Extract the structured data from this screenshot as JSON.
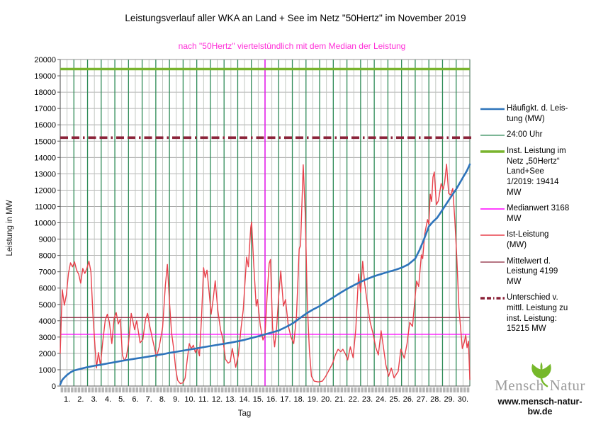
{
  "header": {
    "title": "Leistungsverlauf aller WKA an Land + See im Netz \"50Hertz\" im November 2019",
    "subtitle": "nach \"50Hertz\" viertelstündlich mit dem Median der Leistung",
    "subtitle_color": "#ff30d8"
  },
  "axes": {
    "y": {
      "label": "Leistung in MW",
      "min": 0,
      "max": 20000,
      "step": 1000
    },
    "x": {
      "label": "Tag",
      "day_labels": [
        "1.",
        "2.",
        "3.",
        "4.",
        "5.",
        "6.",
        "7.",
        "8.",
        "9.",
        "10.",
        "11.",
        "12.",
        "13.",
        "14.",
        "15.",
        "16.",
        "17.",
        "18.",
        "19.",
        "20.",
        "21.",
        "22.",
        "23.",
        "24.",
        "25.",
        "26.",
        "27.",
        "28.",
        "29.",
        "30."
      ]
    }
  },
  "legend": {
    "items": [
      {
        "key": "haeufigkeit",
        "label": "Häufigkt. d. Leis-\ntung (MW)",
        "color": "#2e74bb",
        "thickness": 2.6,
        "dash": "solid"
      },
      {
        "key": "mitternacht",
        "label": "24:00 Uhr",
        "color": "#2e8b57",
        "thickness": 1.2,
        "dash": "solid"
      },
      {
        "key": "inst-leistung",
        "label": "Inst. Leistung im\nNetz „50Hertz“\nLand+See\n1/2019: 19414\nMW",
        "color": "#79b42d",
        "thickness": 3.6,
        "dash": "solid"
      },
      {
        "key": "medianwert",
        "label": "Medianwert 3168\nMW",
        "color": "#ff00ff",
        "thickness": 1.4,
        "dash": "solid"
      },
      {
        "key": "ist-leistung",
        "label": "Ist-Leistung\n(MW)",
        "color": "#e8414b",
        "thickness": 1.4,
        "dash": "solid"
      },
      {
        "key": "mittelwert",
        "label": "Mittelwert d.\nLeistung 4199\nMW",
        "color": "#8b2339",
        "thickness": 1.2,
        "dash": "solid"
      },
      {
        "key": "unterschied",
        "label": "Unterschied v.\nmittl. Leistung zu\ninst. Leistung:\n15215 MW",
        "color": "#8b2339",
        "thickness": 3.6,
        "dash": "dashdot"
      }
    ]
  },
  "branding": {
    "logo_text_1": "Mensch",
    "logo_text_2": "Natur",
    "website": "www.mensch-natur-bw.de",
    "leaf_color": "#76b82a",
    "logo_gray": "#9b9b9b"
  },
  "chart_data": {
    "type": "line",
    "title": "Leistungsverlauf aller WKA an Land + See im Netz \"50Hertz\" im November 2019",
    "subtitle": "nach \"50Hertz\" viertelstündlich mit dem Median der Leistung",
    "xlabel": "Tag",
    "ylabel": "Leistung in MW",
    "xlim": [
      0,
      30
    ],
    "ylim": [
      0,
      20000
    ],
    "grid": {
      "y_step": 1000,
      "h_grid_color": "#9c9c9c",
      "halfday_line_color": "#bcc3bc",
      "midnight_line_color": "#2e8b57",
      "axis_color": "#595959",
      "tick_strip_color": "#b5b5b5"
    },
    "reference_lines": {
      "horizontal": [
        {
          "name": "Inst. Leistung im Netz 50Hertz Land+See 1/2019",
          "value": 19414,
          "color": "#79b42d",
          "width": 3.6,
          "style": "solid"
        },
        {
          "name": "Unterschied v. mittl. Leistung zu inst. Leistung",
          "value": 15215,
          "color": "#8b2339",
          "width": 3.6,
          "style": "dashdot"
        },
        {
          "name": "Mittelwert d. Leistung",
          "value": 4199,
          "color": "#8b2339",
          "width": 1.2,
          "style": "solid"
        },
        {
          "name": "Medianwert",
          "value": 3168,
          "color": "#ff00ff",
          "width": 1.2,
          "style": "solid"
        }
      ],
      "vertical": [
        {
          "name": "Median-Position (Monatsmitte)",
          "value": 15,
          "color": "#ff00ff",
          "width": 1.3
        }
      ]
    },
    "series": [
      {
        "name": "Ist-Leistung (MW)",
        "color": "#e8414b",
        "width": 1.4,
        "points": [
          [
            0,
            2000
          ],
          [
            0.08,
            4200
          ],
          [
            0.15,
            5900
          ],
          [
            0.3,
            4950
          ],
          [
            0.45,
            5600
          ],
          [
            0.6,
            6900
          ],
          [
            0.75,
            7550
          ],
          [
            0.9,
            7300
          ],
          [
            1.05,
            7600
          ],
          [
            1.2,
            7100
          ],
          [
            1.35,
            6850
          ],
          [
            1.5,
            6300
          ],
          [
            1.65,
            7200
          ],
          [
            1.8,
            6900
          ],
          [
            1.95,
            7200
          ],
          [
            2.1,
            7650
          ],
          [
            2.25,
            7000
          ],
          [
            2.4,
            4300
          ],
          [
            2.55,
            2400
          ],
          [
            2.65,
            1100
          ],
          [
            2.8,
            2050
          ],
          [
            2.95,
            1250
          ],
          [
            3.1,
            2600
          ],
          [
            3.3,
            4050
          ],
          [
            3.45,
            4400
          ],
          [
            3.6,
            3900
          ],
          [
            3.78,
            2600
          ],
          [
            3.95,
            4150
          ],
          [
            4.1,
            4500
          ],
          [
            4.25,
            3800
          ],
          [
            4.4,
            4100
          ],
          [
            4.55,
            1900
          ],
          [
            4.7,
            1550
          ],
          [
            4.85,
            1800
          ],
          [
            5,
            2600
          ],
          [
            5.2,
            4450
          ],
          [
            5.45,
            3450
          ],
          [
            5.6,
            4000
          ],
          [
            5.85,
            2650
          ],
          [
            6.05,
            2850
          ],
          [
            6.25,
            4100
          ],
          [
            6.4,
            4450
          ],
          [
            6.55,
            3700
          ],
          [
            6.75,
            2900
          ],
          [
            7.05,
            1780
          ],
          [
            7.25,
            2400
          ],
          [
            7.5,
            3600
          ],
          [
            7.7,
            6200
          ],
          [
            7.85,
            7450
          ],
          [
            8,
            5200
          ],
          [
            8.15,
            3300
          ],
          [
            8.3,
            2350
          ],
          [
            8.45,
            1100
          ],
          [
            8.6,
            350
          ],
          [
            8.8,
            150
          ],
          [
            9,
            200
          ],
          [
            9.15,
            500
          ],
          [
            9.3,
            1600
          ],
          [
            9.45,
            2600
          ],
          [
            9.6,
            2300
          ],
          [
            9.75,
            2500
          ],
          [
            9.9,
            2050
          ],
          [
            10.05,
            2350
          ],
          [
            10.2,
            1850
          ],
          [
            10.35,
            4200
          ],
          [
            10.5,
            7250
          ],
          [
            10.62,
            6650
          ],
          [
            10.75,
            7100
          ],
          [
            10.9,
            5800
          ],
          [
            11.05,
            4400
          ],
          [
            11.2,
            5300
          ],
          [
            11.35,
            6450
          ],
          [
            11.55,
            4600
          ],
          [
            11.75,
            3400
          ],
          [
            11.9,
            2950
          ],
          [
            12.1,
            1650
          ],
          [
            12.3,
            1400
          ],
          [
            12.45,
            1500
          ],
          [
            12.6,
            2300
          ],
          [
            12.85,
            1150
          ],
          [
            13.05,
            1900
          ],
          [
            13.25,
            3600
          ],
          [
            13.4,
            4650
          ],
          [
            13.55,
            6600
          ],
          [
            13.65,
            7900
          ],
          [
            13.78,
            7300
          ],
          [
            13.95,
            9700
          ],
          [
            14.02,
            10050
          ],
          [
            14.15,
            7800
          ],
          [
            14.35,
            4900
          ],
          [
            14.45,
            5300
          ],
          [
            14.65,
            3700
          ],
          [
            14.85,
            2820
          ],
          [
            15,
            3120
          ],
          [
            15.15,
            5500
          ],
          [
            15.3,
            7500
          ],
          [
            15.4,
            7750
          ],
          [
            15.55,
            3600
          ],
          [
            15.7,
            2400
          ],
          [
            15.85,
            3600
          ],
          [
            16,
            5500
          ],
          [
            16.15,
            7050
          ],
          [
            16.35,
            4900
          ],
          [
            16.5,
            5300
          ],
          [
            16.7,
            3700
          ],
          [
            16.9,
            3000
          ],
          [
            17.1,
            2600
          ],
          [
            17.3,
            4200
          ],
          [
            17.5,
            8400
          ],
          [
            17.6,
            8600
          ],
          [
            17.8,
            13550
          ],
          [
            17.95,
            10500
          ],
          [
            18.1,
            5000
          ],
          [
            18.25,
            2200
          ],
          [
            18.4,
            600
          ],
          [
            18.6,
            300
          ],
          [
            18.9,
            250
          ],
          [
            19.2,
            300
          ],
          [
            19.45,
            600
          ],
          [
            19.7,
            1000
          ],
          [
            19.95,
            1390
          ],
          [
            20.15,
            1900
          ],
          [
            20.35,
            2250
          ],
          [
            20.55,
            2100
          ],
          [
            20.7,
            2250
          ],
          [
            20.9,
            1950
          ],
          [
            21.05,
            1600
          ],
          [
            21.25,
            2400
          ],
          [
            21.45,
            1740
          ],
          [
            21.65,
            3500
          ],
          [
            21.85,
            6860
          ],
          [
            22,
            5730
          ],
          [
            22.15,
            7640
          ],
          [
            22.3,
            6300
          ],
          [
            22.5,
            5000
          ],
          [
            22.7,
            3900
          ],
          [
            22.9,
            3260
          ],
          [
            23.1,
            2400
          ],
          [
            23.3,
            1900
          ],
          [
            23.5,
            3390
          ],
          [
            23.65,
            2500
          ],
          [
            23.85,
            1300
          ],
          [
            24.05,
            600
          ],
          [
            24.25,
            1100
          ],
          [
            24.45,
            500
          ],
          [
            24.6,
            700
          ],
          [
            24.75,
            900
          ],
          [
            24.95,
            2260
          ],
          [
            25.2,
            1700
          ],
          [
            25.4,
            2600
          ],
          [
            25.6,
            3900
          ],
          [
            25.8,
            3650
          ],
          [
            26,
            5500
          ],
          [
            26.1,
            6430
          ],
          [
            26.25,
            6100
          ],
          [
            26.45,
            8030
          ],
          [
            26.55,
            7800
          ],
          [
            26.7,
            9330
          ],
          [
            26.9,
            10200
          ],
          [
            27,
            9900
          ],
          [
            27.1,
            11750
          ],
          [
            27.2,
            11300
          ],
          [
            27.3,
            12800
          ],
          [
            27.4,
            13110
          ],
          [
            27.55,
            11100
          ],
          [
            27.7,
            11350
          ],
          [
            27.9,
            12400
          ],
          [
            28.05,
            12050
          ],
          [
            28.15,
            12450
          ],
          [
            28.3,
            13590
          ],
          [
            28.45,
            11800
          ],
          [
            28.6,
            11700
          ],
          [
            28.75,
            12100
          ],
          [
            28.9,
            10200
          ],
          [
            29.05,
            7800
          ],
          [
            29.2,
            4800
          ],
          [
            29.45,
            2300
          ],
          [
            29.6,
            2700
          ],
          [
            29.7,
            3120
          ],
          [
            29.8,
            2350
          ],
          [
            29.9,
            2750
          ],
          [
            30,
            400
          ]
        ]
      },
      {
        "name": "Häufigkt. d. Leistung (MW)",
        "color": "#2e74bb",
        "width": 2.6,
        "points": [
          [
            0,
            100
          ],
          [
            0.15,
            380
          ],
          [
            0.3,
            520
          ],
          [
            0.5,
            680
          ],
          [
            0.75,
            840
          ],
          [
            1,
            950
          ],
          [
            1.5,
            1060
          ],
          [
            2,
            1160
          ],
          [
            2.5,
            1240
          ],
          [
            3,
            1310
          ],
          [
            3.5,
            1390
          ],
          [
            4,
            1460
          ],
          [
            4.5,
            1540
          ],
          [
            5,
            1610
          ],
          [
            5.5,
            1680
          ],
          [
            6,
            1740
          ],
          [
            6.5,
            1810
          ],
          [
            7,
            1880
          ],
          [
            7.5,
            1950
          ],
          [
            8,
            2030
          ],
          [
            8.5,
            2100
          ],
          [
            9,
            2170
          ],
          [
            9.5,
            2240
          ],
          [
            10,
            2310
          ],
          [
            10.5,
            2380
          ],
          [
            11,
            2450
          ],
          [
            11.5,
            2520
          ],
          [
            12,
            2590
          ],
          [
            12.5,
            2660
          ],
          [
            13,
            2740
          ],
          [
            13.5,
            2830
          ],
          [
            14,
            2940
          ],
          [
            14.5,
            3050
          ],
          [
            15,
            3168
          ],
          [
            15.5,
            3280
          ],
          [
            16,
            3400
          ],
          [
            16.5,
            3600
          ],
          [
            17,
            3820
          ],
          [
            17.5,
            4130
          ],
          [
            18,
            4430
          ],
          [
            18.5,
            4680
          ],
          [
            19,
            4900
          ],
          [
            19.5,
            5170
          ],
          [
            20,
            5430
          ],
          [
            20.5,
            5700
          ],
          [
            21,
            5950
          ],
          [
            21.5,
            6170
          ],
          [
            22,
            6380
          ],
          [
            22.5,
            6570
          ],
          [
            23,
            6730
          ],
          [
            23.5,
            6860
          ],
          [
            24,
            6990
          ],
          [
            24.5,
            7100
          ],
          [
            25,
            7250
          ],
          [
            25.5,
            7450
          ],
          [
            26,
            7800
          ],
          [
            26.3,
            8300
          ],
          [
            26.6,
            8900
          ],
          [
            27,
            9770
          ],
          [
            27.3,
            10070
          ],
          [
            27.6,
            10300
          ],
          [
            28,
            10800
          ],
          [
            28.5,
            11440
          ],
          [
            29,
            12050
          ],
          [
            29.5,
            12780
          ],
          [
            29.8,
            13200
          ],
          [
            30,
            13580
          ]
        ]
      }
    ]
  }
}
